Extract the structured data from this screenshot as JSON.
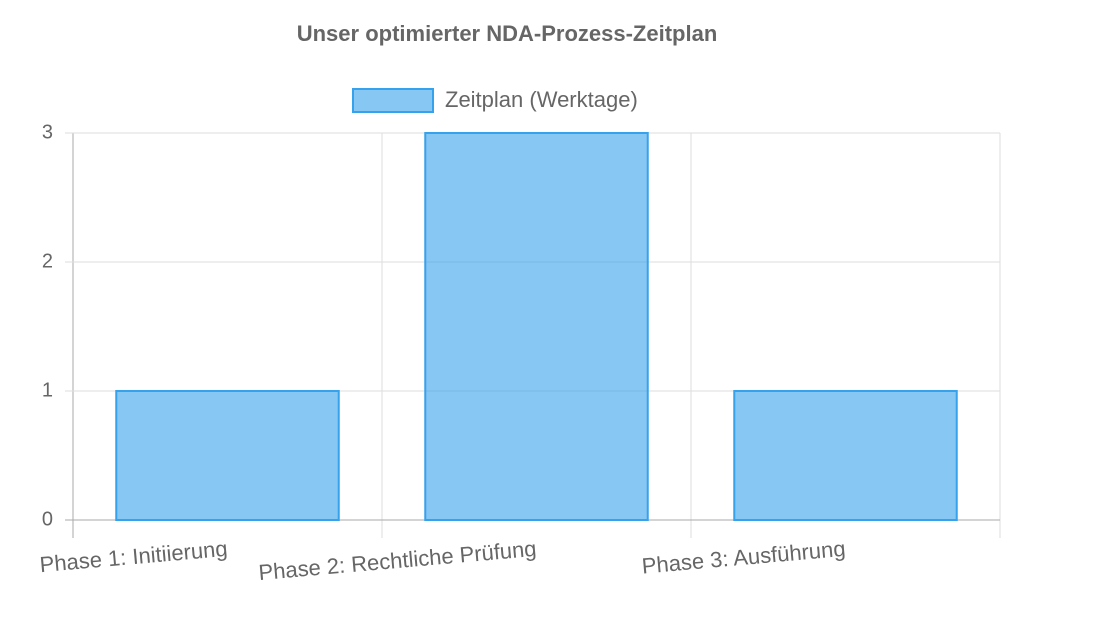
{
  "chart_data": {
    "type": "bar",
    "title": "Unser optimierter NDA-Prozess-Zeitplan",
    "categories": [
      "Phase 1: Initiierung",
      "Phase 2: Rechtliche Prüfung",
      "Phase 3: Ausführung"
    ],
    "series": [
      {
        "name": "Zeitplan (Werktage)",
        "color": "#36a2eb",
        "values": [
          1,
          3,
          1
        ]
      }
    ],
    "ylim": [
      0,
      3
    ],
    "yticks": [
      0,
      1,
      2,
      3
    ],
    "grid": true,
    "legend": "top"
  }
}
